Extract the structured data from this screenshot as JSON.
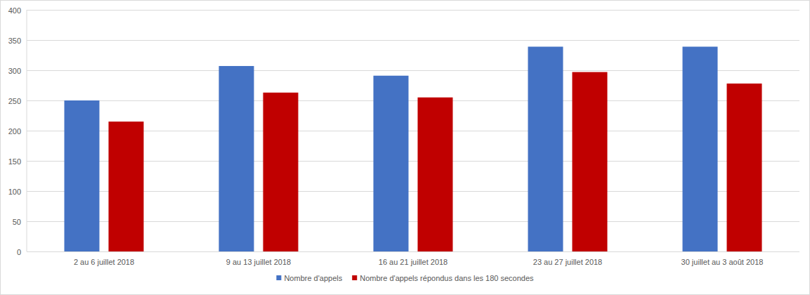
{
  "chart_data": {
    "type": "bar",
    "categories": [
      "2 au 6 juillet 2018",
      "9 au 13 juillet 2018",
      "16 au 21 juillet 2018",
      "23 au 27 juillet 2018",
      "30 juillet au 3 août 2018"
    ],
    "series": [
      {
        "name": "Nombre d'appels",
        "color": "#4472c4",
        "values": [
          250,
          307,
          291,
          339,
          339
        ]
      },
      {
        "name": "Nombre d'appels répondus dans les 180 secondes",
        "color": "#c00000",
        "values": [
          215,
          263,
          255,
          297,
          278
        ]
      }
    ],
    "ylim": [
      0,
      400
    ],
    "yticks": [
      0,
      50,
      100,
      150,
      200,
      250,
      300,
      350,
      400
    ],
    "grid": true,
    "legend": "bottom"
  }
}
